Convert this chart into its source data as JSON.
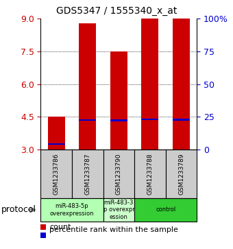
{
  "title": "GDS5347 / 1555340_x_at",
  "samples": [
    "GSM1233786",
    "GSM1233787",
    "GSM1233790",
    "GSM1233788",
    "GSM1233789"
  ],
  "bar_heights": [
    4.5,
    8.8,
    7.5,
    9.0,
    9.0
  ],
  "bar_bottom": 3.0,
  "percentile_values": [
    3.25,
    4.35,
    4.33,
    4.38,
    4.36
  ],
  "ylim_left": [
    3,
    9
  ],
  "ylim_right": [
    0,
    100
  ],
  "yticks_left": [
    3,
    4.5,
    6,
    7.5,
    9
  ],
  "yticks_right": [
    0,
    25,
    50,
    75,
    100
  ],
  "ytick_labels_right": [
    "0",
    "25",
    "50",
    "75",
    "100%"
  ],
  "gridlines": [
    4.5,
    6.0,
    7.5
  ],
  "bar_color": "#cc0000",
  "percentile_color": "#0000cc",
  "bar_width": 0.55,
  "groups": [
    {
      "label": "miR-483-5p\noverexpression",
      "samples": [
        0,
        1
      ],
      "color": "#b3ffb3"
    },
    {
      "label": "miR-483-3\np overexpr\nession",
      "samples": [
        2
      ],
      "color": "#ccffcc"
    },
    {
      "label": "control",
      "samples": [
        3,
        4
      ],
      "color": "#33cc33"
    }
  ],
  "protocol_label": "protocol",
  "legend_count_label": "count",
  "legend_percentile_label": "percentile rank within the sample",
  "sample_box_color": "#cccccc",
  "left_tick_color": "#cc0000",
  "right_tick_color": "#0000cc"
}
